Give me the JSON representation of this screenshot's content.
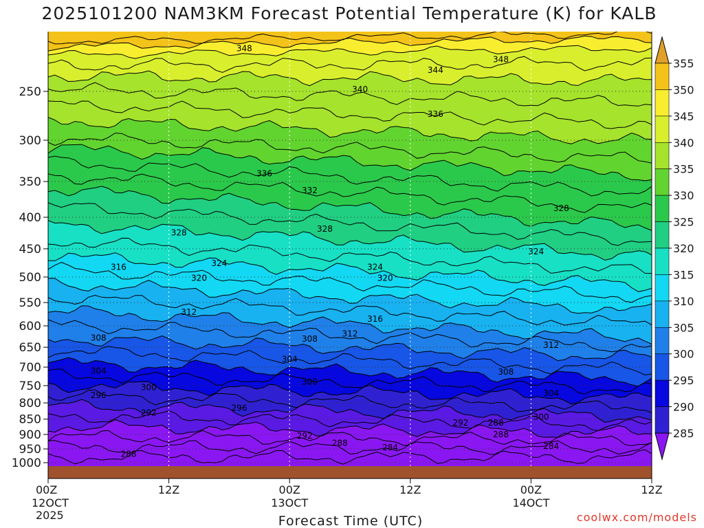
{
  "chart_data": {
    "type": "heatmap",
    "title": "2025101200 NAM3KM Forecast Potential Temperature (K) for KALB",
    "xlabel": "Forecast Time (UTC)",
    "ylabel": "",
    "credit": "coolwx.com/models",
    "x_range_hours": [
      0,
      60
    ],
    "x_ticks": [
      {
        "hour": 0,
        "line1": "00Z",
        "line2": "12OCT",
        "line3": "2025"
      },
      {
        "hour": 12,
        "line1": "12Z",
        "line2": "",
        "line3": ""
      },
      {
        "hour": 24,
        "line1": "00Z",
        "line2": "13OCT",
        "line3": ""
      },
      {
        "hour": 36,
        "line1": "12Z",
        "line2": "",
        "line3": ""
      },
      {
        "hour": 48,
        "line1": "00Z",
        "line2": "14OCT",
        "line3": ""
      },
      {
        "hour": 60,
        "line1": "12Z",
        "line2": "",
        "line3": ""
      }
    ],
    "y_range_hpa": [
      1013,
      200
    ],
    "y_ticks": [
      "250",
      "300",
      "350",
      "400",
      "450",
      "500",
      "550",
      "600",
      "650",
      "700",
      "750",
      "800",
      "850",
      "900",
      "950",
      "1000"
    ],
    "colorbar": {
      "labels": [
        "355",
        "350",
        "345",
        "340",
        "335",
        "330",
        "325",
        "320",
        "315",
        "310",
        "305",
        "300",
        "295",
        "290",
        "285"
      ],
      "colors": [
        "#e0a02a",
        "#f4c319",
        "#f8ee2f",
        "#d9ef2e",
        "#a6e32c",
        "#62d42f",
        "#2bc94b",
        "#20cf82",
        "#17e0c5",
        "#13d8f3",
        "#18b2f1",
        "#1f80e9",
        "#1756e6",
        "#0707df",
        "#2f21d2",
        "#5a1ae3",
        "#8a17f2"
      ],
      "extend": "both"
    },
    "contour_labels": [
      {
        "text": "348",
        "hour": 19.5,
        "hpa": 213
      },
      {
        "text": "348",
        "hour": 45,
        "hpa": 222
      },
      {
        "text": "344",
        "hour": 38.5,
        "hpa": 231
      },
      {
        "text": "340",
        "hour": 31,
        "hpa": 248
      },
      {
        "text": "336",
        "hour": 38.5,
        "hpa": 272
      },
      {
        "text": "336",
        "hour": 21.5,
        "hpa": 340
      },
      {
        "text": "332",
        "hour": 26,
        "hpa": 362
      },
      {
        "text": "328",
        "hour": 51,
        "hpa": 387
      },
      {
        "text": "328",
        "hour": 13,
        "hpa": 424
      },
      {
        "text": "328",
        "hour": 27.5,
        "hpa": 418
      },
      {
        "text": "324",
        "hour": 48.5,
        "hpa": 455
      },
      {
        "text": "324",
        "hour": 17,
        "hpa": 475
      },
      {
        "text": "324",
        "hour": 32.5,
        "hpa": 482
      },
      {
        "text": "320",
        "hour": 15,
        "hpa": 502
      },
      {
        "text": "320",
        "hour": 33.5,
        "hpa": 502
      },
      {
        "text": "316",
        "hour": 7,
        "hpa": 482
      },
      {
        "text": "316",
        "hour": 32.5,
        "hpa": 585
      },
      {
        "text": "312",
        "hour": 14,
        "hpa": 570
      },
      {
        "text": "312",
        "hour": 30,
        "hpa": 618
      },
      {
        "text": "312",
        "hour": 50,
        "hpa": 645
      },
      {
        "text": "308",
        "hour": 5,
        "hpa": 628
      },
      {
        "text": "308",
        "hour": 26,
        "hpa": 630
      },
      {
        "text": "308",
        "hour": 45.5,
        "hpa": 713
      },
      {
        "text": "304",
        "hour": 24,
        "hpa": 680
      },
      {
        "text": "304",
        "hour": 5,
        "hpa": 710
      },
      {
        "text": "304",
        "hour": 50,
        "hpa": 772
      },
      {
        "text": "300",
        "hour": 26,
        "hpa": 740
      },
      {
        "text": "300",
        "hour": 10,
        "hpa": 755
      },
      {
        "text": "300",
        "hour": 49,
        "hpa": 843
      },
      {
        "text": "296",
        "hour": 5,
        "hpa": 778
      },
      {
        "text": "296",
        "hour": 19,
        "hpa": 815
      },
      {
        "text": "292",
        "hour": 10,
        "hpa": 830
      },
      {
        "text": "292",
        "hour": 41,
        "hpa": 862
      },
      {
        "text": "292",
        "hour": 25.5,
        "hpa": 905
      },
      {
        "text": "288",
        "hour": 44.5,
        "hpa": 862
      },
      {
        "text": "288",
        "hour": 45,
        "hpa": 900
      },
      {
        "text": "288",
        "hour": 29,
        "hpa": 930
      },
      {
        "text": "288",
        "hour": 8,
        "hpa": 968
      },
      {
        "text": "284",
        "hour": 34,
        "hpa": 945
      },
      {
        "text": "284",
        "hour": 50,
        "hpa": 940
      }
    ]
  }
}
